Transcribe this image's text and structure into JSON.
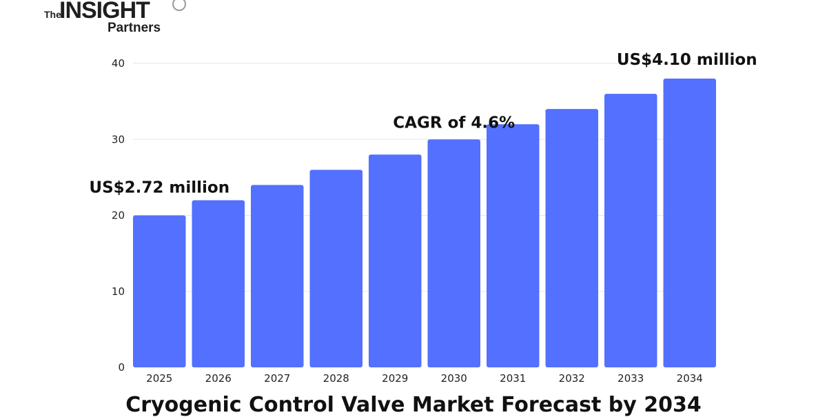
{
  "logo": {
    "the": "The",
    "insight": "INSIGHT",
    "partners": "Partners"
  },
  "colors": {
    "bar": "#5470fe",
    "grid": "#e6e6e6",
    "text": "#111111"
  },
  "chart_data": {
    "type": "bar",
    "title": "Cryogenic Control Valve Market Forecast by 2034",
    "xlabel": "",
    "ylabel": "",
    "categories": [
      "2025",
      "2026",
      "2027",
      "2028",
      "2029",
      "2030",
      "2031",
      "2032",
      "2033",
      "2034"
    ],
    "values": [
      20,
      22,
      24,
      26,
      28,
      30,
      32,
      34,
      36,
      38
    ],
    "ylim": [
      0,
      40
    ],
    "yticks": [
      "0",
      "10",
      "20",
      "30",
      "40"
    ],
    "grid": true,
    "legend": "none",
    "annotations": [
      {
        "text": "US$2.72 million",
        "category": "2025"
      },
      {
        "text": "CAGR of 4.6%",
        "category": "2030"
      },
      {
        "text": "US$4.10 million",
        "category": "2034"
      }
    ]
  }
}
